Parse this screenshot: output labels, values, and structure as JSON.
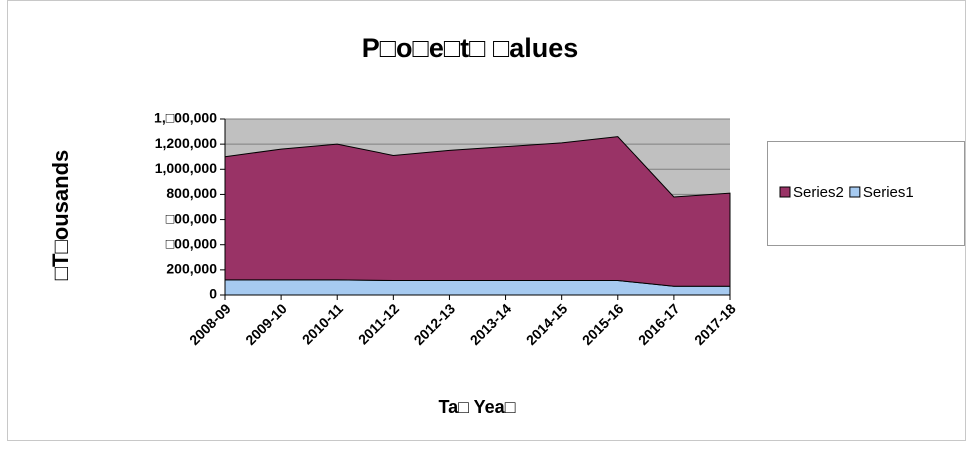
{
  "chart_data": {
    "type": "stacked_area",
    "title": "P□o□e□t□ □alues",
    "xlabel": "Ta□ Yea□",
    "ylabel": "□T□ousands",
    "categories": [
      "2008-09",
      "2009-10",
      "2010-11",
      "2011-12",
      "2012-13",
      "2013-14",
      "2014-15",
      "2015-16",
      "2016-17",
      "2017-18"
    ],
    "series": [
      {
        "name": "Series1",
        "color": "#a6caf0",
        "values": [
          120000,
          120000,
          120000,
          115000,
          115000,
          115000,
          115000,
          115000,
          70000,
          70000
        ]
      },
      {
        "name": "Series2",
        "color": "#993366",
        "values": [
          980000,
          1040000,
          1080000,
          995000,
          1035000,
          1065000,
          1095000,
          1145000,
          710000,
          740000
        ]
      }
    ],
    "ylim": [
      0,
      1400000
    ],
    "yticks": [
      0,
      {
        "value": 200000,
        "label": "200,000"
      },
      {
        "value": 400000,
        "label": "□00,000"
      },
      {
        "value": 600000,
        "label": "□00,000"
      },
      {
        "value": 800000,
        "label": "800,000"
      },
      {
        "value": 1000000,
        "label": "1,000,000"
      },
      {
        "value": 1200000,
        "label": "1,200,000"
      },
      {
        "value": 1400000,
        "label": "1,□00,000"
      }
    ],
    "grid": true,
    "legend": "right"
  }
}
